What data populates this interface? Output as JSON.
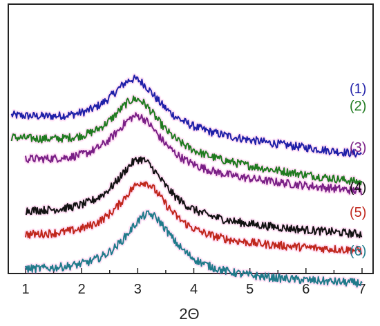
{
  "chart_data": {
    "type": "line",
    "title": "",
    "xlabel": "2Θ",
    "ylabel": "",
    "xlim": [
      0.75,
      7.2
    ],
    "x_ticks": [
      1,
      2,
      3,
      4,
      5,
      6,
      7
    ],
    "y_ticks_shown": false,
    "grid": false,
    "legend": "labels at right end of each curve",
    "series": [
      {
        "name": "(1)",
        "color": "#1f1fa8",
        "x_start": 0.75,
        "x_end": 7.0,
        "baseline_left": 0.87,
        "baseline_right": 0.62,
        "peak_x": 2.95,
        "peak_height": 0.35
      },
      {
        "name": "(2)",
        "color": "#1f7a1f",
        "x_start": 0.75,
        "x_end": 7.0,
        "baseline_left": 0.72,
        "baseline_right": 0.43,
        "peak_x": 2.98,
        "peak_height": 0.38
      },
      {
        "name": "(3)",
        "color": "#7a1f86",
        "x_start": 1.0,
        "x_end": 7.0,
        "baseline_left": 0.57,
        "baseline_right": 0.37,
        "peak_x": 3.0,
        "peak_height": 0.38
      },
      {
        "name": "(4)",
        "color": "#111111",
        "x_start": 1.0,
        "x_end": 7.0,
        "baseline_left": 0.22,
        "baseline_right": 0.08,
        "peak_x": 3.05,
        "peak_height": 0.42
      },
      {
        "name": "(5)",
        "color": "#c0261c",
        "x_start": 1.0,
        "x_end": 7.0,
        "baseline_left": 0.06,
        "baseline_right": -0.03,
        "peak_x": 3.1,
        "peak_height": 0.41
      },
      {
        "name": "(6)",
        "color": "#1f7a8a",
        "x_start": 1.0,
        "x_end": 7.0,
        "baseline_left": -0.17,
        "baseline_right": -0.25,
        "peak_x": 3.2,
        "peak_height": 0.42
      }
    ]
  }
}
